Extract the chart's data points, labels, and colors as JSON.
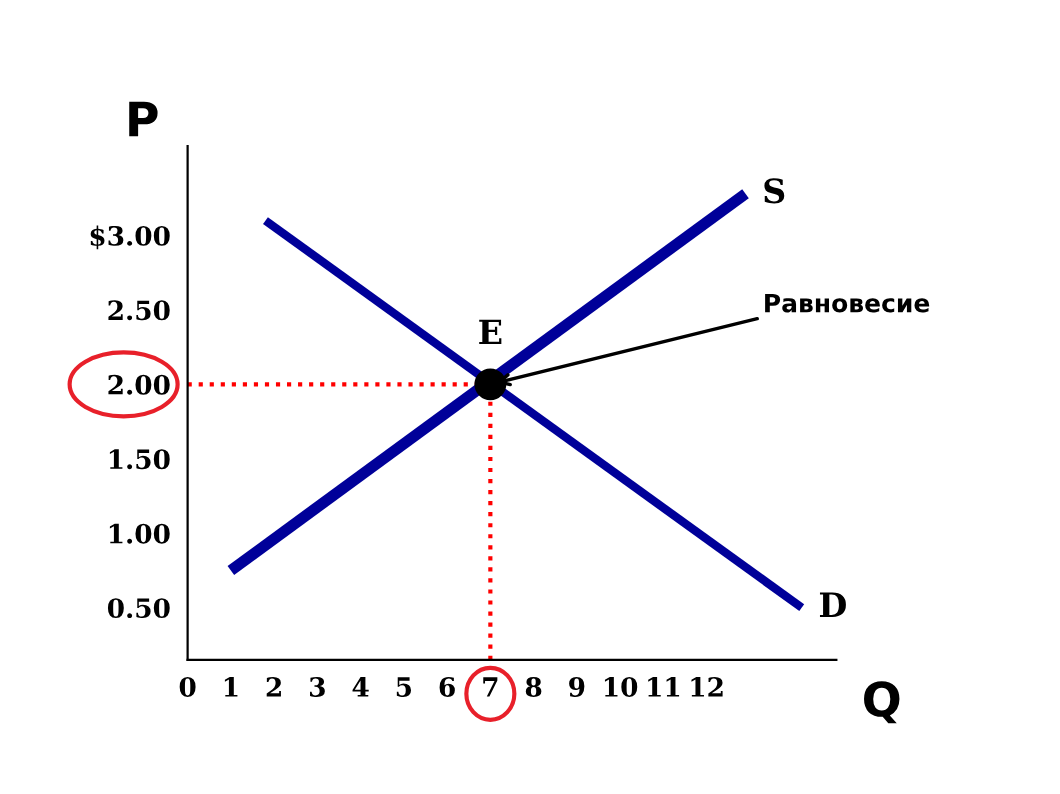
{
  "chart_data": {
    "type": "line",
    "xlabel": "Q",
    "ylabel": "P",
    "xlim": [
      0,
      15
    ],
    "ylim": [
      0.15,
      3.6
    ],
    "xticks": [
      0,
      1,
      2,
      3,
      4,
      5,
      6,
      7,
      8,
      9,
      10,
      11,
      12
    ],
    "yticks": [
      {
        "value": 0.5,
        "label": "0.50"
      },
      {
        "value": 1.0,
        "label": "1.00"
      },
      {
        "value": 1.5,
        "label": "1.50"
      },
      {
        "value": 2.0,
        "label": "2.00"
      },
      {
        "value": 2.5,
        "label": "2.50"
      },
      {
        "value": 3.0,
        "label": "$3.00"
      }
    ],
    "series": [
      {
        "name": "S",
        "color": "#000099",
        "x": [
          1.0,
          12.9
        ],
        "values": [
          0.75,
          3.28
        ]
      },
      {
        "name": "D",
        "color": "#000099",
        "x": [
          1.8,
          14.2
        ],
        "values": [
          3.1,
          0.5
        ]
      },
      {
        "name": "E",
        "type": "scatter",
        "color": "#000000",
        "x": [
          7
        ],
        "values": [
          2.0
        ]
      }
    ],
    "ref_lines": [
      {
        "axis": "x",
        "value": 7,
        "color": "#ff0000",
        "line_style": "dotted"
      },
      {
        "axis": "y",
        "value": 2.0,
        "color": "#ff0000",
        "line_style": "dotted"
      }
    ],
    "annotations": [
      {
        "text": "Равновесие",
        "x": 7,
        "y": 2.0
      }
    ],
    "line_style": "solid",
    "grid": false,
    "legend": false
  }
}
